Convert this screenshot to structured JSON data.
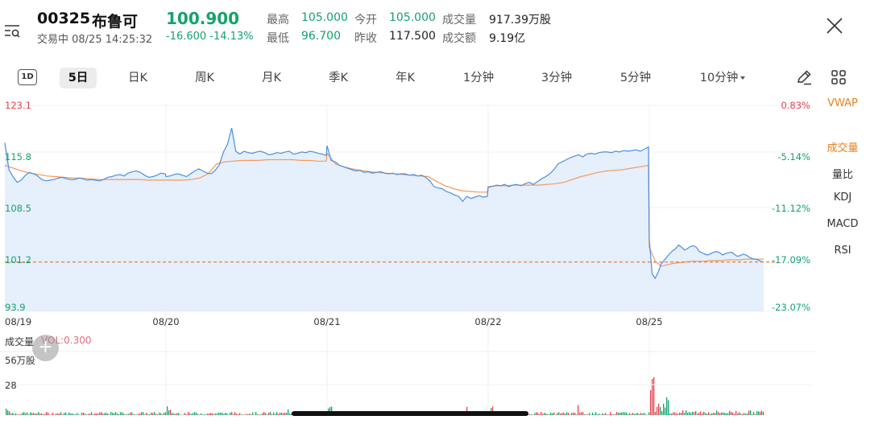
{
  "header": {
    "code": "00325",
    "name": "布鲁可",
    "price": "100.900",
    "status": "交易中 08/25 14:25:32",
    "change": "-16.600 -14.13%",
    "stats": {
      "high_label": "最高",
      "high": "105.000",
      "low_label": "最低",
      "low": "96.700",
      "open_label": "今开",
      "open": "105.000",
      "prev_close_label": "昨收",
      "prev_close": "117.500",
      "volume_label": "成交量",
      "volume": "917.39万股",
      "turnover_label": "成交额",
      "turnover": "9.19亿"
    }
  },
  "tabs": {
    "oned": "1D",
    "items": [
      "5日",
      "日K",
      "周K",
      "月K",
      "季K",
      "年K",
      "1分钟",
      "3分钟",
      "5分钟",
      "10分钟"
    ],
    "active": "5日"
  },
  "indicators": {
    "items": [
      "VWAP",
      "成交量",
      "量比",
      "KDJ",
      "MACD",
      "RSI"
    ],
    "active": [
      "VWAP",
      "成交量"
    ]
  },
  "colors": {
    "up": "#e5404f",
    "down": "#13a36a",
    "price_line": "#4a8fe0",
    "price_fill": "#e6effc",
    "vwap_line": "#f39a5c",
    "ref_line": "#f07c3a",
    "accent": "#e8821e"
  },
  "chart_data": {
    "type": "line",
    "price_axis": {
      "ticks": [
        {
          "value": 123.1,
          "label": "123.1",
          "pct": "0.83%",
          "color": "#e5404f"
        },
        {
          "value": 115.8,
          "label": "115.8",
          "pct": "-5.14%",
          "color": "#13a36a"
        },
        {
          "value": 108.5,
          "label": "108.5",
          "pct": "-11.12%",
          "color": "#13a36a"
        },
        {
          "value": 101.2,
          "label": "101.2",
          "pct": "-17.09%",
          "color": "#13a36a"
        },
        {
          "value": 93.9,
          "label": "93.9",
          "pct": "-23.07%",
          "color": "#13a36a"
        }
      ],
      "ylim": [
        93.9,
        123.1
      ]
    },
    "dates": [
      "08/19",
      "08/20",
      "08/21",
      "08/22",
      "08/25"
    ],
    "current_price": 100.9,
    "series": [
      {
        "days": [
          [
            117.8,
            114,
            113,
            112.2,
            112.5,
            113.2,
            113.6,
            113.4,
            113.1,
            112.6,
            112.4,
            112.5,
            112.6,
            112.8,
            112.9,
            112.7,
            112.6,
            112.6,
            112.8,
            112.7,
            112.5,
            112.6,
            112.5,
            112.4,
            112.6,
            112.9,
            113,
            113.2,
            113.3,
            113.1,
            113.5,
            113.7,
            113.8,
            113.6,
            113.2,
            112.9,
            113,
            113.2,
            113.5,
            113.4
          ],
          [
            113,
            113.1,
            113.3,
            113.4,
            113.2,
            113,
            113.4,
            113.8,
            114.1,
            113.8,
            113.5,
            113.4,
            113.9,
            114.7,
            116.5,
            117.6,
            119.9,
            116.6,
            116.2,
            116.6,
            116.4,
            116.3,
            116.5,
            116.6,
            116.4,
            116.1,
            116.2,
            116.4,
            116.3,
            116.5,
            116.6,
            116.2,
            116.3,
            116.5,
            116.4,
            116.6,
            116.5,
            116.3,
            116.2,
            116.0
          ],
          [
            117.4,
            115.3,
            115.1,
            114.6,
            114.4,
            114.2,
            114,
            113.8,
            113.9,
            113.6,
            113.7,
            113.5,
            113.6,
            113.7,
            113.5,
            113.4,
            113.5,
            113.3,
            113.4,
            113.4,
            113.2,
            113.3,
            113.1,
            113.2,
            112.9,
            112.4,
            111.6,
            111.4,
            111.3,
            110.9,
            110.7,
            110.4,
            110.2,
            109.5,
            110.2,
            109.9,
            110.1,
            110.3,
            110.1,
            110.2
          ],
          [
            111.5,
            111.6,
            111.8,
            111.7,
            111.9,
            111.6,
            111.8,
            111.9,
            111.7,
            112.0,
            112.2,
            111.9,
            112.3,
            112.7,
            113.0,
            113.4,
            114.0,
            114.8,
            115.1,
            115.4,
            115.7,
            115.9,
            116.1,
            115.8,
            116.2,
            116.3,
            116.2,
            116.4,
            116.5,
            116.5,
            116.4,
            116.6,
            116.5,
            116.7,
            116.6,
            116.7,
            116.8,
            116.6,
            116.9,
            117.2
          ],
          [
            104.0,
            99.2,
            98.6,
            99.4,
            100.6,
            101.1,
            101.6,
            102.1,
            102.5,
            102.8,
            103.3,
            103.0,
            102.6,
            102.8,
            103.1,
            103.2,
            103.0,
            102.4,
            102.2,
            102.0,
            101.9,
            102.1,
            102.3,
            102.4,
            102.2,
            101.9,
            102.1,
            102.2,
            102.3,
            102.0,
            101.7,
            101.8,
            102.0,
            101.9,
            101.6,
            101.4,
            101.3,
            101.2,
            101.0,
            100.9
          ]
        ]
      }
    ],
    "vwap": {
      "days": [
        [
          114.6,
          114.2,
          113.8,
          113.5,
          113.3,
          113.1,
          113,
          112.9,
          112.8,
          112.8,
          112.7,
          112.6,
          112.6,
          112.6,
          112.6,
          112.6,
          112.6,
          112.5,
          112.5,
          112.5
        ],
        [
          112.5,
          112.5,
          112.5,
          112.6,
          112.8,
          113.4,
          114.8,
          115.1,
          115.2,
          115.3,
          115.3,
          115.3,
          115.4,
          115.4,
          115.4,
          115.4,
          115.3,
          115.3,
          115.2,
          115.2
        ],
        [
          116.3,
          114.8,
          114.4,
          114.1,
          113.9,
          113.7,
          113.6,
          113.5,
          113.4,
          113.3,
          113.2,
          113.1,
          113.0,
          112.3,
          111.7,
          111.3,
          111.0,
          110.9,
          110.8,
          110.8
        ],
        [
          111.6,
          111.7,
          111.7,
          111.8,
          111.8,
          111.8,
          111.8,
          111.9,
          112.0,
          112.2,
          112.6,
          113.0,
          113.3,
          113.6,
          113.8,
          113.9,
          114.0,
          114.2,
          114.4,
          114.6
        ],
        [
          103.0,
          101.0,
          100.3,
          100.5,
          100.7,
          100.8,
          100.9,
          101.0,
          101.0,
          101.0,
          101.1,
          101.1,
          101.1,
          101.2,
          101.2,
          101.2,
          101.3,
          101.3,
          101.3,
          101.3
        ]
      ]
    },
    "volume": {
      "ticks": [
        "56万股",
        "28"
      ],
      "max": 56,
      "title": "成交量",
      "value_label": "VOL:0.300"
    }
  }
}
